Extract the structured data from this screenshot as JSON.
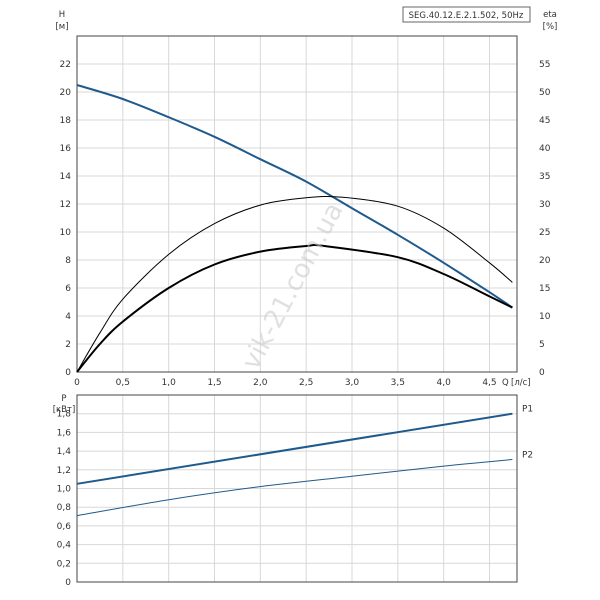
{
  "chart_data": [
    {
      "type": "line",
      "title": "SEG.40.12.E.2.1.502, 50Hz",
      "xlabel": "Q [л/с]",
      "xlabel_left": "Q",
      "xlabel_unit": "[л/с]",
      "ylabel": "H [м]",
      "ylabel_name": "H",
      "ylabel_unit": "[м]",
      "y2label_name": "eta",
      "y2label_unit": "[%]",
      "xlim": [
        0,
        4.8
      ],
      "ylim": [
        0,
        24
      ],
      "y2lim": [
        0,
        60
      ],
      "x_ticks": [
        "0",
        "0,5",
        "1,0",
        "1,5",
        "2,0",
        "2,5",
        "3,0",
        "3,5",
        "4,0",
        "4,5"
      ],
      "x_tick_values": [
        0,
        0.5,
        1.0,
        1.5,
        2.0,
        2.5,
        3.0,
        3.5,
        4.0,
        4.5
      ],
      "y_ticks": [
        "0",
        "2",
        "4",
        "6",
        "8",
        "10",
        "12",
        "14",
        "16",
        "18",
        "20",
        "22"
      ],
      "y_tick_values": [
        0,
        2,
        4,
        6,
        8,
        10,
        12,
        14,
        16,
        18,
        20,
        22
      ],
      "y2_ticks": [
        "0",
        "5",
        "10",
        "15",
        "20",
        "25",
        "30",
        "35",
        "40",
        "45",
        "50",
        "55"
      ],
      "y2_tick_values": [
        0,
        5,
        10,
        15,
        20,
        25,
        30,
        35,
        40,
        45,
        50,
        55
      ],
      "grid": true,
      "series": [
        {
          "axis": "left",
          "color": "#1f5a8c",
          "width": 2,
          "x": [
            0,
            0.5,
            1.0,
            1.5,
            2.0,
            2.5,
            3.0,
            3.5,
            4.0,
            4.5,
            4.75
          ],
          "y": [
            20.5,
            19.5,
            18.2,
            16.8,
            15.2,
            13.6,
            11.7,
            9.8,
            7.8,
            5.7,
            4.6
          ]
        },
        {
          "axis": "right",
          "color": "#000000",
          "width": 1,
          "x": [
            0,
            0.25,
            0.5,
            1.0,
            1.5,
            2.0,
            2.5,
            2.9,
            3.5,
            4.0,
            4.5,
            4.75
          ],
          "y": [
            0,
            7,
            13,
            21,
            26.5,
            29.8,
            31.1,
            31.2,
            29.6,
            25.7,
            19.5,
            16
          ]
        },
        {
          "axis": "right",
          "color": "#000000",
          "width": 2,
          "x": [
            0,
            0.25,
            0.5,
            1.0,
            1.5,
            2.0,
            2.5,
            2.7,
            3.5,
            4.0,
            4.5,
            4.75
          ],
          "y": [
            0,
            5,
            9,
            15,
            19.2,
            21.5,
            22.5,
            22.5,
            20.5,
            17.5,
            13.5,
            11.5
          ]
        }
      ],
      "watermark": "vik-21.com.ua"
    },
    {
      "type": "line",
      "ylabel": "P [кВт]",
      "ylabel_name": "P",
      "ylabel_unit": "[кВт]",
      "xlim": [
        0,
        4.8
      ],
      "ylim": [
        0,
        2.0
      ],
      "y_ticks": [
        "0",
        "0,2",
        "0,4",
        "0,6",
        "0,8",
        "1,0",
        "1,2",
        "1,4",
        "1,6",
        "1,8"
      ],
      "y_tick_values": [
        0,
        0.2,
        0.4,
        0.6,
        0.8,
        1.0,
        1.2,
        1.4,
        1.6,
        1.8
      ],
      "grid": true,
      "series": [
        {
          "name": "P1",
          "color": "#1f5a8c",
          "width": 2,
          "x": [
            0,
            4.75
          ],
          "y": [
            1.05,
            1.8
          ]
        },
        {
          "name": "P2",
          "color": "#1f5a8c",
          "width": 1,
          "x": [
            0,
            1.0,
            2.0,
            3.0,
            4.0,
            4.75
          ],
          "y": [
            0.71,
            0.88,
            1.02,
            1.13,
            1.24,
            1.31
          ]
        }
      ]
    }
  ]
}
